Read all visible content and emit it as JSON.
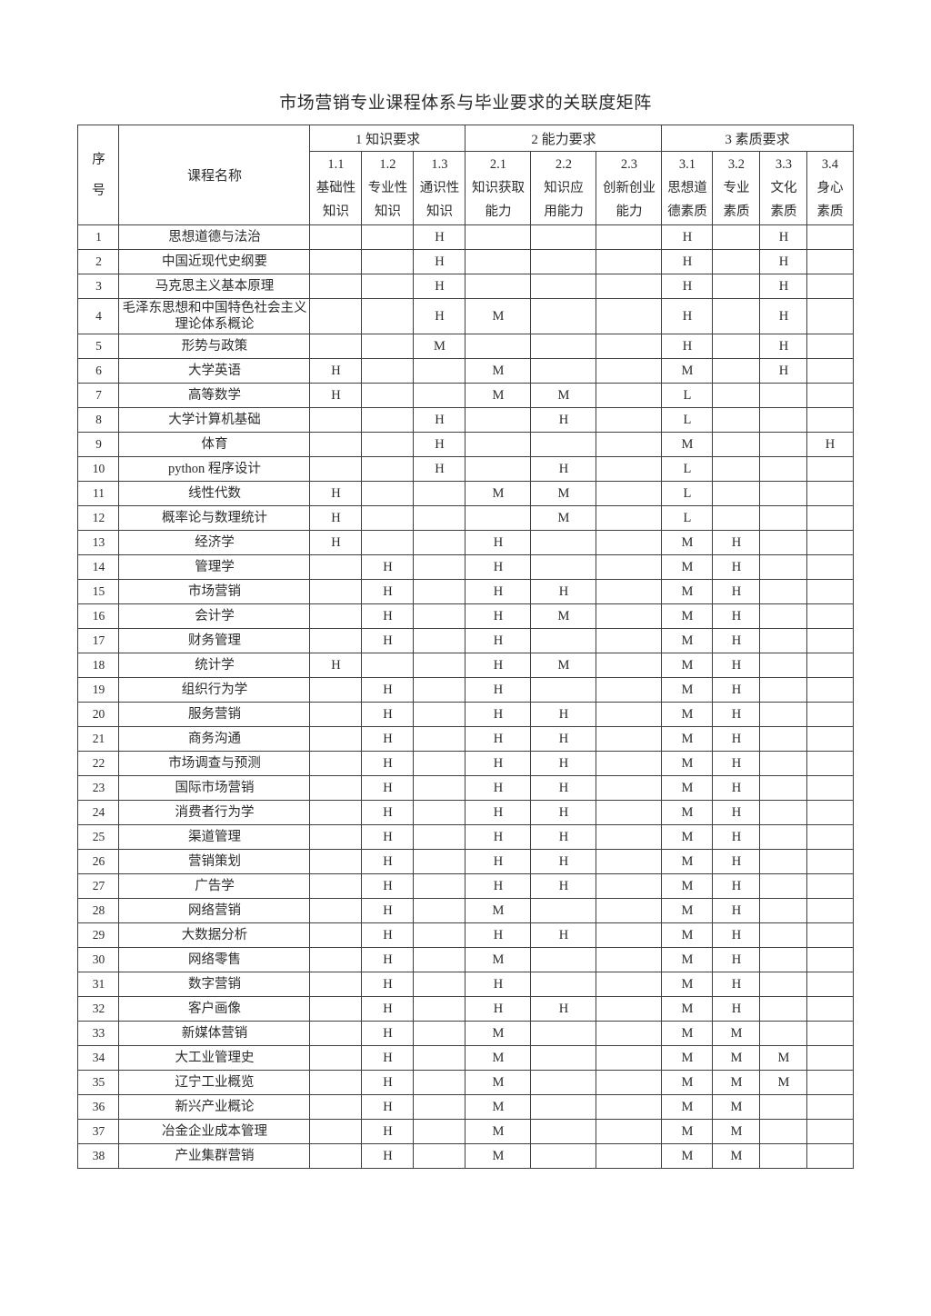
{
  "page": {
    "title": "市场营销专业课程体系与毕业要求的关联度矩阵"
  },
  "colors": {
    "background": "#ffffff",
    "text": "#2b2b2b",
    "border": "#3f3f3f"
  },
  "table": {
    "corner_header": {
      "line1": "序",
      "line2": "号"
    },
    "course_header": "课程名称",
    "groups": [
      {
        "label": "1 知识要求"
      },
      {
        "label": "2 能力要求"
      },
      {
        "label": "3 素质要求"
      }
    ],
    "sub_headers": [
      {
        "code": "1.1",
        "line1": "基础性",
        "line2": "知识"
      },
      {
        "code": "1.2",
        "line1": "专业性",
        "line2": "知识"
      },
      {
        "code": "1.3",
        "line1": "通识性",
        "line2": "知识"
      },
      {
        "code": "2.1",
        "line1": "知识获取",
        "line2": "能力"
      },
      {
        "code": "2.2",
        "line1": "知识应",
        "line2": "用能力"
      },
      {
        "code": "2.3",
        "line1": "创新创业",
        "line2": "能力"
      },
      {
        "code": "3.1",
        "line1": "思想道",
        "line2": "德素质"
      },
      {
        "code": "3.2",
        "line1": "专业",
        "line2": "素质"
      },
      {
        "code": "3.3",
        "line1": "文化",
        "line2": "素质"
      },
      {
        "code": "3.4",
        "line1": "身心",
        "line2": "素质"
      }
    ],
    "rows": [
      {
        "no": "1",
        "course": "思想道德与法治",
        "values": [
          "",
          "",
          "H",
          "",
          "",
          "",
          "H",
          "",
          "H",
          ""
        ]
      },
      {
        "no": "2",
        "course": "中国近现代史纲要",
        "values": [
          "",
          "",
          "H",
          "",
          "",
          "",
          "H",
          "",
          "H",
          ""
        ]
      },
      {
        "no": "3",
        "course": "马克思主义基本原理",
        "values": [
          "",
          "",
          "H",
          "",
          "",
          "",
          "H",
          "",
          "H",
          ""
        ]
      },
      {
        "no": "4",
        "course": "毛泽东思想和中国特色社会主义理论体系概论",
        "values": [
          "",
          "",
          "H",
          "M",
          "",
          "",
          "H",
          "",
          "H",
          ""
        ]
      },
      {
        "no": "5",
        "course": "形势与政策",
        "values": [
          "",
          "",
          "M",
          "",
          "",
          "",
          "H",
          "",
          "H",
          ""
        ]
      },
      {
        "no": "6",
        "course": "大学英语",
        "values": [
          "H",
          "",
          "",
          "M",
          "",
          "",
          "M",
          "",
          "H",
          ""
        ]
      },
      {
        "no": "7",
        "course": "高等数学",
        "values": [
          "H",
          "",
          "",
          "M",
          "M",
          "",
          "L",
          "",
          "",
          ""
        ]
      },
      {
        "no": "8",
        "course": "大学计算机基础",
        "values": [
          "",
          "",
          "H",
          "",
          "H",
          "",
          "L",
          "",
          "",
          ""
        ]
      },
      {
        "no": "9",
        "course": "体育",
        "values": [
          "",
          "",
          "H",
          "",
          "",
          "",
          "M",
          "",
          "",
          "H"
        ]
      },
      {
        "no": "10",
        "course": "python 程序设计",
        "values": [
          "",
          "",
          "H",
          "",
          "H",
          "",
          "L",
          "",
          "",
          ""
        ]
      },
      {
        "no": "11",
        "course": "线性代数",
        "values": [
          "H",
          "",
          "",
          "M",
          "M",
          "",
          "L",
          "",
          "",
          ""
        ]
      },
      {
        "no": "12",
        "course": "概率论与数理统计",
        "values": [
          "H",
          "",
          "",
          "",
          "M",
          "",
          "L",
          "",
          "",
          ""
        ]
      },
      {
        "no": "13",
        "course": "经济学",
        "values": [
          "H",
          "",
          "",
          "H",
          "",
          "",
          "M",
          "H",
          "",
          ""
        ]
      },
      {
        "no": "14",
        "course": "管理学",
        "values": [
          "",
          "H",
          "",
          "H",
          "",
          "",
          "M",
          "H",
          "",
          ""
        ]
      },
      {
        "no": "15",
        "course": "市场营销",
        "values": [
          "",
          "H",
          "",
          "H",
          "H",
          "",
          "M",
          "H",
          "",
          ""
        ]
      },
      {
        "no": "16",
        "course": "会计学",
        "values": [
          "",
          "H",
          "",
          "H",
          "M",
          "",
          "M",
          "H",
          "",
          ""
        ]
      },
      {
        "no": "17",
        "course": "财务管理",
        "values": [
          "",
          "H",
          "",
          "H",
          "",
          "",
          "M",
          "H",
          "",
          ""
        ]
      },
      {
        "no": "18",
        "course": "统计学",
        "values": [
          "H",
          "",
          "",
          "H",
          "M",
          "",
          "M",
          "H",
          "",
          ""
        ]
      },
      {
        "no": "19",
        "course": "组织行为学",
        "values": [
          "",
          "H",
          "",
          "H",
          "",
          "",
          "M",
          "H",
          "",
          ""
        ]
      },
      {
        "no": "20",
        "course": "服务营销",
        "values": [
          "",
          "H",
          "",
          "H",
          "H",
          "",
          "M",
          "H",
          "",
          ""
        ]
      },
      {
        "no": "21",
        "course": "商务沟通",
        "values": [
          "",
          "H",
          "",
          "H",
          "H",
          "",
          "M",
          "H",
          "",
          ""
        ]
      },
      {
        "no": "22",
        "course": "市场调查与预测",
        "values": [
          "",
          "H",
          "",
          "H",
          "H",
          "",
          "M",
          "H",
          "",
          ""
        ]
      },
      {
        "no": "23",
        "course": "国际市场营销",
        "values": [
          "",
          "H",
          "",
          "H",
          "H",
          "",
          "M",
          "H",
          "",
          ""
        ]
      },
      {
        "no": "24",
        "course": "消费者行为学",
        "values": [
          "",
          "H",
          "",
          "H",
          "H",
          "",
          "M",
          "H",
          "",
          ""
        ]
      },
      {
        "no": "25",
        "course": "渠道管理",
        "values": [
          "",
          "H",
          "",
          "H",
          "H",
          "",
          "M",
          "H",
          "",
          ""
        ]
      },
      {
        "no": "26",
        "course": "营销策划",
        "values": [
          "",
          "H",
          "",
          "H",
          "H",
          "",
          "M",
          "H",
          "",
          ""
        ]
      },
      {
        "no": "27",
        "course": "广告学",
        "values": [
          "",
          "H",
          "",
          "H",
          "H",
          "",
          "M",
          "H",
          "",
          ""
        ]
      },
      {
        "no": "28",
        "course": "网络营销",
        "values": [
          "",
          "H",
          "",
          "M",
          "",
          "",
          "M",
          "H",
          "",
          ""
        ]
      },
      {
        "no": "29",
        "course": "大数据分析",
        "values": [
          "",
          "H",
          "",
          "H",
          "H",
          "",
          "M",
          "H",
          "",
          ""
        ]
      },
      {
        "no": "30",
        "course": "网络零售",
        "values": [
          "",
          "H",
          "",
          "M",
          "",
          "",
          "M",
          "H",
          "",
          ""
        ]
      },
      {
        "no": "31",
        "course": "数字营销",
        "values": [
          "",
          "H",
          "",
          "H",
          "",
          "",
          "M",
          "H",
          "",
          ""
        ]
      },
      {
        "no": "32",
        "course": "客户画像",
        "values": [
          "",
          "H",
          "",
          "H",
          "H",
          "",
          "M",
          "H",
          "",
          ""
        ]
      },
      {
        "no": "33",
        "course": "新媒体营销",
        "values": [
          "",
          "H",
          "",
          "M",
          "",
          "",
          "M",
          "M",
          "",
          ""
        ]
      },
      {
        "no": "34",
        "course": "大工业管理史",
        "values": [
          "",
          "H",
          "",
          "M",
          "",
          "",
          "M",
          "M",
          "M",
          ""
        ]
      },
      {
        "no": "35",
        "course": "辽宁工业概览",
        "values": [
          "",
          "H",
          "",
          "M",
          "",
          "",
          "M",
          "M",
          "M",
          ""
        ]
      },
      {
        "no": "36",
        "course": "新兴产业概论",
        "values": [
          "",
          "H",
          "",
          "M",
          "",
          "",
          "M",
          "M",
          "",
          ""
        ]
      },
      {
        "no": "37",
        "course": "冶金企业成本管理",
        "values": [
          "",
          "H",
          "",
          "M",
          "",
          "",
          "M",
          "M",
          "",
          ""
        ]
      },
      {
        "no": "38",
        "course": "产业集群营销",
        "values": [
          "",
          "H",
          "",
          "M",
          "",
          "",
          "M",
          "M",
          "",
          ""
        ]
      }
    ]
  }
}
